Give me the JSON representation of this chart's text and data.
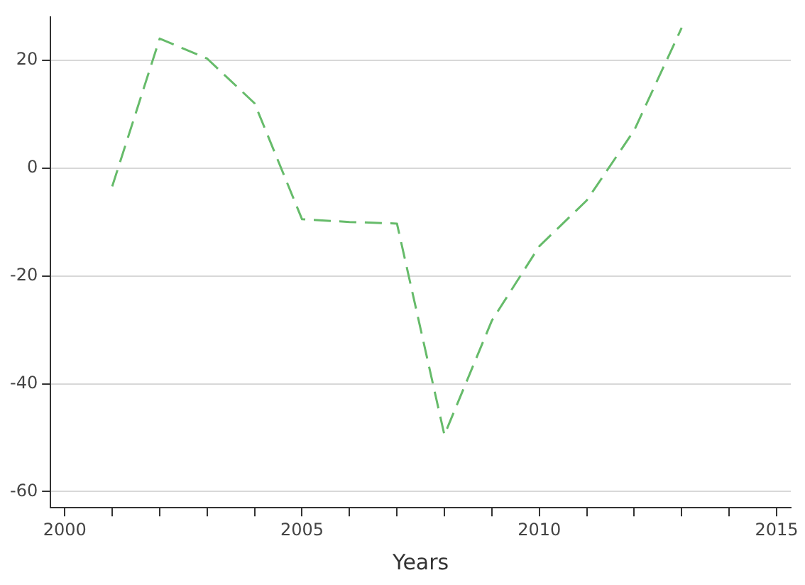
{
  "chart_data": {
    "type": "line",
    "xlabel": "Years",
    "x": [
      2001,
      2002,
      2003,
      2004,
      2005,
      2006,
      2007,
      2008,
      2009,
      2010,
      2011,
      2012,
      2013
    ],
    "series": [
      {
        "color": "#66bb6a",
        "values": [
          -3.4,
          24,
          20.3,
          12,
          -9.5,
          -10,
          -10.3,
          -49.5,
          -28.3,
          -14.5,
          -6,
          7,
          26
        ]
      }
    ],
    "xlim": [
      1999.7,
      2015.3
    ],
    "ylim": [
      -63,
      28
    ],
    "xticks": [
      2000,
      {
        "value": 2001,
        "label": null
      },
      {
        "value": 2002,
        "label": null
      },
      {
        "value": 2003,
        "label": null
      },
      {
        "value": 2004,
        "label": null
      },
      2005,
      {
        "value": 2006,
        "label": null
      },
      {
        "value": 2007,
        "label": null
      },
      {
        "value": 2008,
        "label": null
      },
      {
        "value": 2009,
        "label": null
      },
      2010,
      {
        "value": 2011,
        "label": null
      },
      {
        "value": 2012,
        "label": null
      },
      {
        "value": 2013,
        "label": null
      },
      {
        "value": 2014,
        "label": null
      },
      2015
    ],
    "yticks": [
      -60,
      -40,
      -20,
      0,
      20
    ],
    "grid": "y",
    "legend": false,
    "marker": "none",
    "line_style": "dashed"
  }
}
